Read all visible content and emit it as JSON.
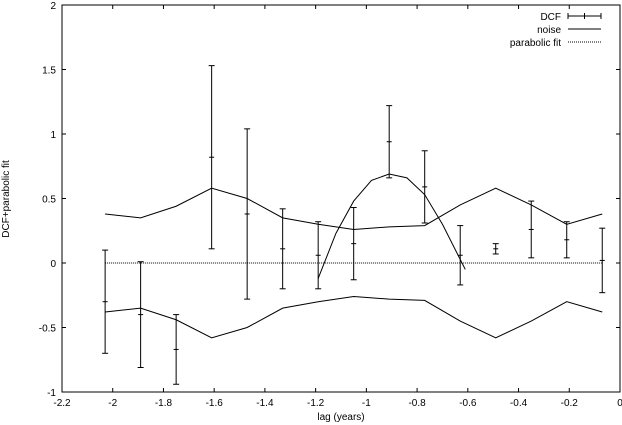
{
  "chart_data": {
    "type": "line",
    "title": "",
    "xlabel": "lag (years)",
    "ylabel": "DCF+parabolic fit",
    "xlim": [
      -2.2,
      0
    ],
    "ylim": [
      -1,
      2
    ],
    "xticks": [
      -2.2,
      -2,
      -1.8,
      -1.6,
      -1.4,
      -1.2,
      -1,
      -0.8,
      -0.6,
      -0.4,
      -0.2,
      0
    ],
    "xtick_labels": [
      "-2.2",
      "-2",
      "-1.8",
      "-1.6",
      "-1.4",
      "-1.2",
      "-1",
      "-0.8",
      "-0.6",
      "-0.4",
      "-0.2",
      "0"
    ],
    "yticks": [
      -1,
      -0.5,
      0,
      0.5,
      1,
      1.5,
      2
    ],
    "ytick_labels": [
      "-1",
      "-0.5",
      "0",
      "0.5",
      "1",
      "1.5",
      "2"
    ],
    "grid": false,
    "legend_position": "top-right",
    "series": [
      {
        "name": "DCF",
        "kind": "errorbar",
        "x": [
          -2.03,
          -1.89,
          -1.75,
          -1.61,
          -1.47,
          -1.33,
          -1.19,
          -1.05,
          -0.91,
          -0.77,
          -0.63,
          -0.49,
          -0.35,
          -0.21,
          -0.07
        ],
        "y": [
          -0.3,
          -0.4,
          -0.67,
          0.82,
          0.38,
          0.11,
          0.06,
          0.15,
          0.94,
          0.59,
          0.06,
          0.11,
          0.26,
          0.18,
          0.02
        ],
        "yerr": [
          0.4,
          0.41,
          0.27,
          0.71,
          0.66,
          0.31,
          0.26,
          0.28,
          0.28,
          0.28,
          0.23,
          0.04,
          0.22,
          0.14,
          0.25
        ]
      },
      {
        "name": "noise",
        "kind": "line",
        "x": [
          -2.03,
          -1.89,
          -1.75,
          -1.61,
          -1.47,
          -1.33,
          -1.19,
          -1.05,
          -0.91,
          -0.77,
          -0.63,
          -0.49,
          -0.35,
          -0.21,
          -0.07
        ],
        "y_upper": [
          0.38,
          0.35,
          0.44,
          0.58,
          0.5,
          0.35,
          0.3,
          0.26,
          0.28,
          0.29,
          0.45,
          0.58,
          0.45,
          0.3,
          0.38
        ],
        "y_lower": [
          -0.38,
          -0.35,
          -0.44,
          -0.58,
          -0.5,
          -0.35,
          -0.3,
          -0.26,
          -0.28,
          -0.29,
          -0.45,
          -0.58,
          -0.45,
          -0.3,
          -0.38
        ]
      },
      {
        "name": "parabolic fit",
        "kind": "dotted-line",
        "segments": [
          {
            "x": [
              -2.03,
              -0.07
            ],
            "y": [
              0,
              0
            ]
          },
          {
            "x": [
              -1.19,
              -1.12,
              -1.05,
              -0.98,
              -0.91,
              -0.84,
              -0.77,
              -0.7,
              -0.61
            ],
            "y": [
              -0.12,
              0.23,
              0.48,
              0.64,
              0.69,
              0.66,
              0.53,
              0.3,
              -0.05
            ]
          }
        ]
      }
    ]
  }
}
